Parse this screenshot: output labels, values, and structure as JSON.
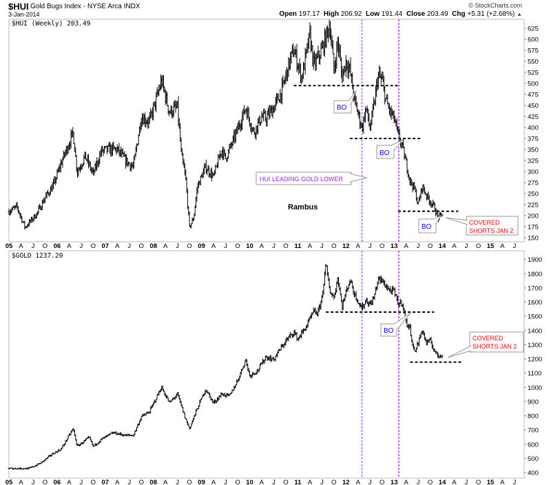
{
  "header": {
    "symbol": "$HUI",
    "name": "Gold Bugs Index - NYSE Arca INDX",
    "date": "3-Jan-2014",
    "credit": "© StockCharts.com",
    "open_label": "Open",
    "open": "197.17",
    "high_label": "High",
    "high": "206.92",
    "low_label": "Low",
    "low": "191.44",
    "close_label": "Close",
    "close": "203.49",
    "chg_label": "Chg",
    "chg": "+5.31 (+2.68%)",
    "up_color": "#008000"
  },
  "colors": {
    "bars": "#000000",
    "vline": "#a020f0",
    "bo_text": "#0000ff",
    "covered_text": "#ff0000",
    "hui_note_text": "#a020f0"
  },
  "x_ticks": [
    "05",
    "A",
    "J",
    "O",
    "06",
    "A",
    "J",
    "O",
    "07",
    "A",
    "J",
    "O",
    "08",
    "A",
    "J",
    "O",
    "09",
    "A",
    "J",
    "O",
    "10",
    "A",
    "J",
    "O",
    "11",
    "A",
    "J",
    "O",
    "12",
    "A",
    "J",
    "O",
    "13",
    "A",
    "J",
    "O",
    "14",
    "A",
    "J",
    "O",
    "15",
    "A",
    "J"
  ],
  "vertical_markers": [
    "2012-05",
    "2013-02"
  ],
  "chart_data": [
    {
      "type": "ohlc",
      "label": "$HUI (Weekly) 203.49",
      "ylim": [
        150,
        625
      ],
      "yticks": [
        150,
        175,
        200,
        225,
        250,
        275,
        300,
        325,
        350,
        375,
        400,
        425,
        450,
        475,
        500,
        525,
        550,
        575,
        600,
        625
      ],
      "x": [
        "2005-01",
        "2005-03",
        "2005-05",
        "2005-08",
        "2005-10",
        "2005-12",
        "2006-02",
        "2006-05",
        "2006-06",
        "2006-08",
        "2006-10",
        "2006-12",
        "2007-02",
        "2007-04",
        "2007-06",
        "2007-08",
        "2007-10",
        "2007-12",
        "2008-02",
        "2008-03",
        "2008-05",
        "2008-07",
        "2008-08",
        "2008-09",
        "2008-10",
        "2008-11",
        "2008-12",
        "2009-02",
        "2009-04",
        "2009-06",
        "2009-07",
        "2009-09",
        "2009-12",
        "2010-02",
        "2010-04",
        "2010-05",
        "2010-07",
        "2010-09",
        "2010-11",
        "2010-12",
        "2011-02",
        "2011-04",
        "2011-05",
        "2011-07",
        "2011-09",
        "2011-10",
        "2011-11",
        "2011-12",
        "2012-01",
        "2012-02",
        "2012-03",
        "2012-05",
        "2012-06",
        "2012-07",
        "2012-08",
        "2012-09",
        "2012-10",
        "2012-11",
        "2012-12",
        "2013-01",
        "2013-02",
        "2013-03",
        "2013-04",
        "2013-05",
        "2013-06",
        "2013-07",
        "2013-08",
        "2013-09",
        "2013-10",
        "2013-11",
        "2013-12",
        "2014-01"
      ],
      "close": [
        210,
        220,
        173,
        205,
        241,
        267,
        319,
        388,
        299,
        335,
        294,
        346,
        350,
        350,
        325,
        310,
        424,
        413,
        471,
        507,
        435,
        445,
        335,
        288,
        173,
        194,
        267,
        310,
        288,
        350,
        330,
        372,
        445,
        388,
        424,
        420,
        445,
        482,
        550,
        576,
        513,
        608,
        539,
        576,
        633,
        529,
        597,
        513,
        550,
        529,
        467,
        398,
        445,
        398,
        451,
        518,
        507,
        460,
        435,
        420,
        382,
        357,
        319,
        278,
        263,
        225,
        267,
        247,
        232,
        220,
        194,
        203.49
      ],
      "support_lines": [
        {
          "value": 495,
          "from": "2010-12",
          "to": "2013-02"
        },
        {
          "value": 375,
          "from": "2012-02",
          "to": "2013-08"
        },
        {
          "value": 210,
          "from": "2013-02",
          "to": "2014-05"
        }
      ],
      "annotations": {
        "bo1": "BO",
        "bo2": "BO",
        "bo3": "BO",
        "lead": "HUI LEADING GOLD LOWER",
        "author": "Rambus",
        "covered1": "COVERED",
        "covered2": "SHORTS JAN 2"
      }
    },
    {
      "type": "ohlc",
      "label": "$GOLD 1237.20",
      "ylim": [
        400,
        1900
      ],
      "yticks": [
        400,
        500,
        600,
        700,
        800,
        900,
        1000,
        1100,
        1200,
        1300,
        1400,
        1500,
        1600,
        1700,
        1800,
        1900
      ],
      "x": [
        "2005-01",
        "2005-06",
        "2005-09",
        "2005-12",
        "2006-02",
        "2006-05",
        "2006-06",
        "2006-09",
        "2006-10",
        "2006-12",
        "2007-03",
        "2007-06",
        "2007-08",
        "2007-10",
        "2007-12",
        "2008-03",
        "2008-05",
        "2008-07",
        "2008-09",
        "2008-10",
        "2008-12",
        "2009-02",
        "2009-04",
        "2009-06",
        "2009-08",
        "2009-10",
        "2009-12",
        "2010-01",
        "2010-03",
        "2010-05",
        "2010-07",
        "2010-08",
        "2010-10",
        "2010-12",
        "2011-01",
        "2011-03",
        "2011-05",
        "2011-06",
        "2011-07",
        "2011-08",
        "2011-09",
        "2011-10",
        "2011-11",
        "2011-12",
        "2012-02",
        "2012-03",
        "2012-05",
        "2012-06",
        "2012-07",
        "2012-08",
        "2012-09",
        "2012-10",
        "2012-11",
        "2012-12",
        "2013-01",
        "2013-02",
        "2013-03",
        "2013-04",
        "2013-05",
        "2013-06",
        "2013-07",
        "2013-08",
        "2013-09",
        "2013-10",
        "2013-11",
        "2013-12",
        "2014-01"
      ],
      "close": [
        429,
        429,
        468,
        535,
        565,
        710,
        584,
        647,
        584,
        633,
        681,
        662,
        662,
        793,
        827,
        1001,
        890,
        953,
        778,
        710,
        856,
        987,
        890,
        953,
        938,
        1050,
        1195,
        1084,
        1118,
        1215,
        1195,
        1244,
        1326,
        1390,
        1341,
        1423,
        1535,
        1520,
        1632,
        1860,
        1680,
        1632,
        1777,
        1569,
        1763,
        1666,
        1554,
        1617,
        1583,
        1632,
        1763,
        1748,
        1714,
        1680,
        1675,
        1583,
        1603,
        1457,
        1409,
        1244,
        1312,
        1409,
        1312,
        1326,
        1263,
        1215,
        1237.2
      ],
      "support_lines": [
        {
          "value": 1530,
          "from": "2011-08",
          "to": "2013-11"
        },
        {
          "value": 1178,
          "from": "2013-05",
          "to": "2014-06"
        }
      ],
      "annotations": {
        "bo1": "BO",
        "covered1": "COVERED",
        "covered2": "SHORTS JAN 2"
      }
    }
  ]
}
